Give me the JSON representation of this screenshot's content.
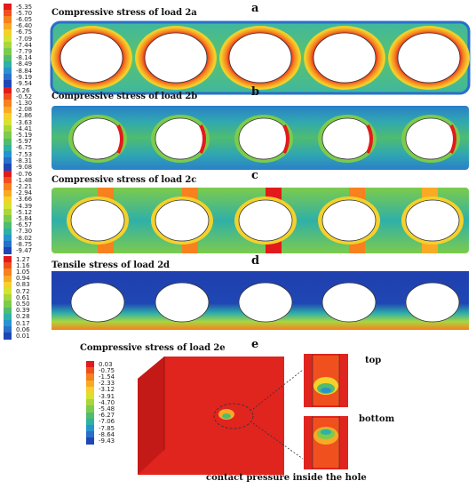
{
  "panels": [
    {
      "letter": "a",
      "title": "Compressive stress of load 2a",
      "legend": [
        "-5.35",
        "-5.70",
        "-6.05",
        "-6.40",
        "-6.75",
        "-7.09",
        "-7.44",
        "-7.79",
        "-8.14",
        "-8.49",
        "-8.84",
        "-9.19",
        "-9.54"
      ]
    },
    {
      "letter": "b",
      "title": "Compressive stress of load 2b",
      "legend": [
        "0.26",
        "-0.52",
        "-1.30",
        "-2.08",
        "-2.86",
        "-3.63",
        "-4.41",
        "-5.19",
        "-5.97",
        "-6.75",
        "-7.53",
        "-8.31",
        "-9.08"
      ]
    },
    {
      "letter": "c",
      "title": "Compressive stress of load 2c",
      "legend": [
        "-0.76",
        "-1.48",
        "-2.21",
        "-2.94",
        "-3.66",
        "-4.39",
        "-5.12",
        "-5.84",
        "-6.57",
        "-7.30",
        "-8.02",
        "-8.75",
        "-9.47"
      ]
    },
    {
      "letter": "d",
      "title": "Tensile stress of load 2d",
      "legend": [
        "1.27",
        "1.16",
        "1.05",
        "0.94",
        "0.83",
        "0.72",
        "0.61",
        "0.50",
        "0.39",
        "0.28",
        "0.17",
        "0.06",
        "0.01"
      ]
    },
    {
      "letter": "e",
      "title": "Compressive stress of load 2e",
      "legend": [
        "0.03",
        "-0.75",
        "-1.54",
        "-2.33",
        "-3.12",
        "-3.91",
        "-4.70",
        "-5.48",
        "-6.27",
        "-7.06",
        "-7.85",
        "-8.64",
        "-9.43"
      ]
    }
  ],
  "callouts": {
    "top": "top",
    "bottom": "bottom",
    "contact": "contact pressure inside the hole"
  },
  "colors": {
    "scale": [
      "#e31a1c",
      "#f0501e",
      "#f7801f",
      "#f9aa25",
      "#f4d12b",
      "#d6e232",
      "#a8d63e",
      "#7ccb4c",
      "#4fbc70",
      "#2fb0a8",
      "#2993d0",
      "#2a6fc9",
      "#1f47b4"
    ],
    "plate_deep_blue": "#1f3fae",
    "block_red": "#e0241e"
  }
}
